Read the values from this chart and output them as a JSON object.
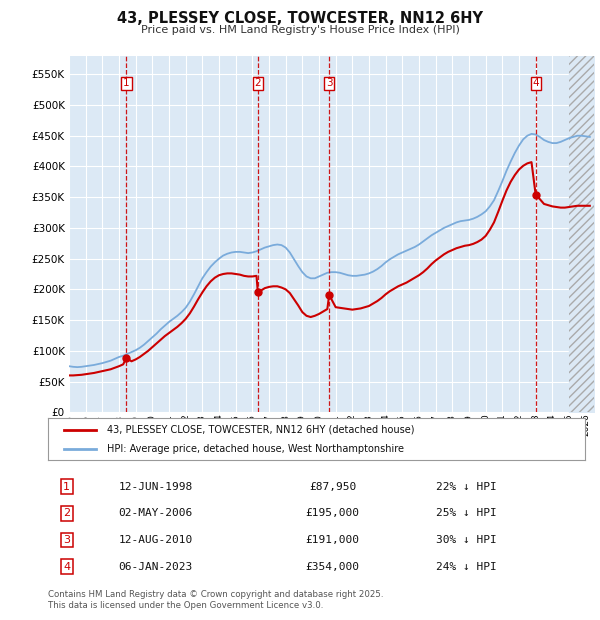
{
  "title": "43, PLESSEY CLOSE, TOWCESTER, NN12 6HY",
  "subtitle": "Price paid vs. HM Land Registry's House Price Index (HPI)",
  "plot_bg_color": "#dce9f5",
  "ylim": [
    0,
    580000
  ],
  "yticks": [
    0,
    50000,
    100000,
    150000,
    200000,
    250000,
    300000,
    350000,
    400000,
    450000,
    500000,
    550000
  ],
  "xlim_start": 1995.0,
  "xlim_end": 2026.5,
  "sale_color": "#cc0000",
  "hpi_color": "#7aabdb",
  "legend_sale_label": "43, PLESSEY CLOSE, TOWCESTER, NN12 6HY (detached house)",
  "legend_hpi_label": "HPI: Average price, detached house, West Northamptonshire",
  "transactions": [
    {
      "num": 1,
      "date": "12-JUN-1998",
      "x": 1998.44,
      "price": 87950,
      "price_str": "£87,950",
      "pct": "22%"
    },
    {
      "num": 2,
      "date": "02-MAY-2006",
      "x": 2006.33,
      "price": 195000,
      "price_str": "£195,000",
      "pct": "25%"
    },
    {
      "num": 3,
      "date": "12-AUG-2010",
      "x": 2010.61,
      "price": 191000,
      "price_str": "£191,000",
      "pct": "30%"
    },
    {
      "num": 4,
      "date": "06-JAN-2023",
      "x": 2023.02,
      "price": 354000,
      "price_str": "£354,000",
      "pct": "24%"
    }
  ],
  "footer": "Contains HM Land Registry data © Crown copyright and database right 2025.\nThis data is licensed under the Open Government Licence v3.0.",
  "hatch_start": 2025.0,
  "hpi_x": [
    1995.0,
    1995.25,
    1995.5,
    1995.75,
    1996.0,
    1996.25,
    1996.5,
    1996.75,
    1997.0,
    1997.25,
    1997.5,
    1997.75,
    1998.0,
    1998.25,
    1998.5,
    1998.75,
    1999.0,
    1999.25,
    1999.5,
    1999.75,
    2000.0,
    2000.25,
    2000.5,
    2000.75,
    2001.0,
    2001.25,
    2001.5,
    2001.75,
    2002.0,
    2002.25,
    2002.5,
    2002.75,
    2003.0,
    2003.25,
    2003.5,
    2003.75,
    2004.0,
    2004.25,
    2004.5,
    2004.75,
    2005.0,
    2005.25,
    2005.5,
    2005.75,
    2006.0,
    2006.25,
    2006.5,
    2006.75,
    2007.0,
    2007.25,
    2007.5,
    2007.75,
    2008.0,
    2008.25,
    2008.5,
    2008.75,
    2009.0,
    2009.25,
    2009.5,
    2009.75,
    2010.0,
    2010.25,
    2010.5,
    2010.75,
    2011.0,
    2011.25,
    2011.5,
    2011.75,
    2012.0,
    2012.25,
    2012.5,
    2012.75,
    2013.0,
    2013.25,
    2013.5,
    2013.75,
    2014.0,
    2014.25,
    2014.5,
    2014.75,
    2015.0,
    2015.25,
    2015.5,
    2015.75,
    2016.0,
    2016.25,
    2016.5,
    2016.75,
    2017.0,
    2017.25,
    2017.5,
    2017.75,
    2018.0,
    2018.25,
    2018.5,
    2018.75,
    2019.0,
    2019.25,
    2019.5,
    2019.75,
    2020.0,
    2020.25,
    2020.5,
    2020.75,
    2021.0,
    2021.25,
    2021.5,
    2021.75,
    2022.0,
    2022.25,
    2022.5,
    2022.75,
    2023.0,
    2023.25,
    2023.5,
    2023.75,
    2024.0,
    2024.25,
    2024.5,
    2024.75,
    2025.0,
    2025.25,
    2025.5,
    2025.75,
    2026.0,
    2026.25
  ],
  "hpi_y": [
    75000,
    74000,
    73500,
    74000,
    75000,
    76000,
    77000,
    78500,
    80000,
    82000,
    84000,
    87000,
    90000,
    92000,
    95000,
    98000,
    101000,
    105000,
    110000,
    116000,
    122000,
    128000,
    135000,
    141000,
    147000,
    152000,
    157000,
    163000,
    170000,
    180000,
    192000,
    205000,
    218000,
    228000,
    237000,
    244000,
    250000,
    255000,
    258000,
    260000,
    261000,
    261000,
    260000,
    259000,
    260000,
    262000,
    265000,
    268000,
    270000,
    272000,
    273000,
    272000,
    268000,
    260000,
    249000,
    238000,
    228000,
    221000,
    218000,
    218000,
    221000,
    224000,
    227000,
    228000,
    228000,
    227000,
    225000,
    223000,
    222000,
    222000,
    223000,
    224000,
    226000,
    229000,
    233000,
    238000,
    244000,
    249000,
    253000,
    257000,
    260000,
    263000,
    266000,
    269000,
    273000,
    278000,
    283000,
    288000,
    292000,
    296000,
    300000,
    303000,
    306000,
    309000,
    311000,
    312000,
    313000,
    315000,
    318000,
    322000,
    327000,
    335000,
    345000,
    360000,
    376000,
    393000,
    408000,
    422000,
    434000,
    444000,
    450000,
    453000,
    452000,
    448000,
    443000,
    440000,
    438000,
    438000,
    440000,
    443000,
    446000,
    448000,
    450000,
    450000,
    449000,
    448000
  ],
  "sale_x": [
    1995.0,
    1995.25,
    1995.5,
    1995.75,
    1996.0,
    1996.25,
    1996.5,
    1996.75,
    1997.0,
    1997.25,
    1997.5,
    1997.75,
    1998.0,
    1998.25,
    1998.44,
    1998.75,
    1999.0,
    1999.25,
    1999.5,
    1999.75,
    2000.0,
    2000.25,
    2000.5,
    2000.75,
    2001.0,
    2001.25,
    2001.5,
    2001.75,
    2002.0,
    2002.25,
    2002.5,
    2002.75,
    2003.0,
    2003.25,
    2003.5,
    2003.75,
    2004.0,
    2004.25,
    2004.5,
    2004.75,
    2005.0,
    2005.25,
    2005.5,
    2005.75,
    2006.0,
    2006.25,
    2006.33,
    2006.75,
    2007.0,
    2007.25,
    2007.5,
    2007.75,
    2008.0,
    2008.25,
    2008.5,
    2008.75,
    2009.0,
    2009.25,
    2009.5,
    2009.75,
    2010.0,
    2010.25,
    2010.5,
    2010.61,
    2011.0,
    2011.25,
    2011.5,
    2011.75,
    2012.0,
    2012.25,
    2012.5,
    2012.75,
    2013.0,
    2013.25,
    2013.5,
    2013.75,
    2014.0,
    2014.25,
    2014.5,
    2014.75,
    2015.0,
    2015.25,
    2015.5,
    2015.75,
    2016.0,
    2016.25,
    2016.5,
    2016.75,
    2017.0,
    2017.25,
    2017.5,
    2017.75,
    2018.0,
    2018.25,
    2018.5,
    2018.75,
    2019.0,
    2019.25,
    2019.5,
    2019.75,
    2020.0,
    2020.25,
    2020.5,
    2020.75,
    2021.0,
    2021.25,
    2021.5,
    2021.75,
    2022.0,
    2022.25,
    2022.5,
    2022.75,
    2023.0,
    2023.02,
    2023.5,
    2023.75,
    2024.0,
    2024.25,
    2024.5,
    2024.75,
    2025.0,
    2025.25,
    2025.5,
    2025.75,
    2026.0,
    2026.25
  ],
  "sale_y": [
    60000,
    60000,
    60500,
    61000,
    62000,
    63000,
    64000,
    65500,
    67000,
    68500,
    70000,
    72500,
    75000,
    78000,
    87950,
    83000,
    86000,
    90000,
    95000,
    100000,
    106000,
    112000,
    118000,
    124000,
    129000,
    134000,
    139000,
    145000,
    152000,
    161000,
    172000,
    184000,
    195000,
    205000,
    213000,
    219000,
    223000,
    225000,
    226000,
    226000,
    225000,
    224000,
    222000,
    221000,
    221000,
    222000,
    195000,
    202000,
    204000,
    205000,
    205000,
    203000,
    200000,
    194000,
    184000,
    174000,
    163000,
    157000,
    155000,
    157000,
    160000,
    164000,
    168000,
    191000,
    171000,
    170000,
    169000,
    168000,
    167000,
    168000,
    169000,
    171000,
    173000,
    177000,
    181000,
    186000,
    192000,
    197000,
    201000,
    205000,
    208000,
    211000,
    215000,
    219000,
    223000,
    228000,
    234000,
    241000,
    247000,
    252000,
    257000,
    261000,
    264000,
    267000,
    269000,
    271000,
    272000,
    274000,
    277000,
    281000,
    287000,
    297000,
    309000,
    326000,
    344000,
    361000,
    375000,
    386000,
    395000,
    401000,
    405000,
    407000,
    354000,
    354000,
    339000,
    337000,
    335000,
    334000,
    333000,
    333000,
    334000,
    335000,
    336000,
    336000,
    336000,
    336000
  ]
}
